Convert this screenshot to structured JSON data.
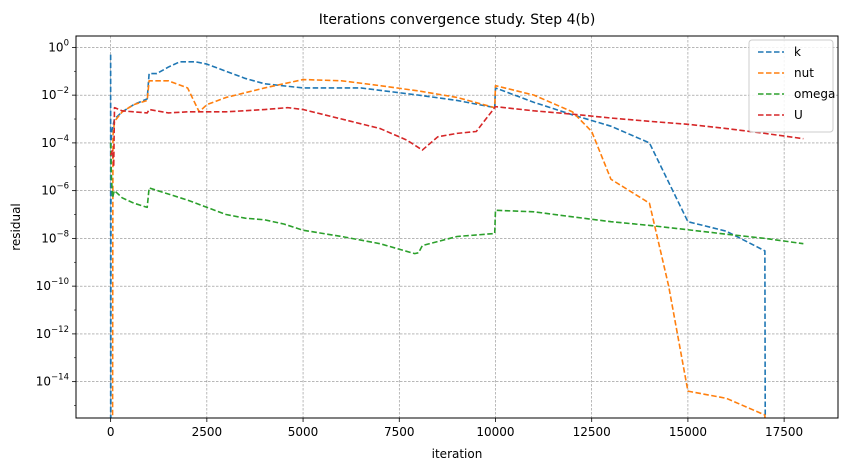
{
  "chart_data": {
    "type": "line",
    "title": "Iterations convergence study. Step 4(b)",
    "xlabel": "iteration",
    "ylabel": "residual",
    "yscale": "log",
    "xlim": [
      -900,
      18900
    ],
    "ylim": [
      3e-16,
      3
    ],
    "xticks": [
      0,
      2500,
      5000,
      7500,
      10000,
      12500,
      15000,
      17500
    ],
    "yticks": [
      {
        "base": "10",
        "exp": "0",
        "value": 1
      },
      {
        "base": "10",
        "exp": "−2",
        "value": 0.01
      },
      {
        "base": "10",
        "exp": "−4",
        "value": 0.0001
      },
      {
        "base": "10",
        "exp": "−6",
        "value": 1e-06
      },
      {
        "base": "10",
        "exp": "−8",
        "value": 1e-08
      },
      {
        "base": "10",
        "exp": "−10",
        "value": 1e-10
      },
      {
        "base": "10",
        "exp": "−12",
        "value": 1e-12
      },
      {
        "base": "10",
        "exp": "−14",
        "value": 1e-14
      }
    ],
    "grid": true,
    "legend_position": "top-right",
    "series": [
      {
        "name": "k",
        "color": "#1f77b4",
        "points": [
          [
            0,
            0.5
          ],
          [
            1,
            1e-16
          ],
          [
            5,
            1e-16
          ],
          [
            10,
            0.0001
          ],
          [
            30,
            0.0003
          ],
          [
            100,
            0.001
          ],
          [
            300,
            0.002
          ],
          [
            600,
            0.004
          ],
          [
            950,
            0.007
          ],
          [
            1000,
            0.08
          ],
          [
            1200,
            0.08
          ],
          [
            1500,
            0.15
          ],
          [
            1800,
            0.25
          ],
          [
            2200,
            0.25
          ],
          [
            2500,
            0.2
          ],
          [
            3000,
            0.1
          ],
          [
            3500,
            0.05
          ],
          [
            4000,
            0.03
          ],
          [
            5000,
            0.02
          ],
          [
            6500,
            0.02
          ],
          [
            8000,
            0.01
          ],
          [
            9000,
            0.006
          ],
          [
            9980,
            0.003
          ],
          [
            10000,
            0.02
          ],
          [
            10500,
            0.01
          ],
          [
            11000,
            0.005
          ],
          [
            12000,
            0.0015
          ],
          [
            13000,
            0.0005
          ],
          [
            14000,
            0.0001
          ],
          [
            15000,
            5e-08
          ],
          [
            16000,
            2e-08
          ],
          [
            17000,
            3e-09
          ],
          [
            17010,
            1e-16
          ]
        ]
      },
      {
        "name": "nut",
        "color": "#ff7f0e",
        "points": [
          [
            0,
            1e-16
          ],
          [
            50,
            1e-16
          ],
          [
            60,
            0.0002
          ],
          [
            100,
            0.0008
          ],
          [
            300,
            0.002
          ],
          [
            600,
            0.004
          ],
          [
            950,
            0.006
          ],
          [
            1000,
            0.04
          ],
          [
            1500,
            0.04
          ],
          [
            2000,
            0.02
          ],
          [
            2300,
            0.002
          ],
          [
            2500,
            0.004
          ],
          [
            3000,
            0.008
          ],
          [
            4000,
            0.02
          ],
          [
            5000,
            0.045
          ],
          [
            6000,
            0.04
          ],
          [
            7000,
            0.025
          ],
          [
            8000,
            0.015
          ],
          [
            9000,
            0.008
          ],
          [
            9980,
            0.003
          ],
          [
            10000,
            0.025
          ],
          [
            11000,
            0.01
          ],
          [
            12000,
            0.002
          ],
          [
            12500,
            0.0003
          ],
          [
            13000,
            3e-06
          ],
          [
            14000,
            3e-07
          ],
          [
            14500,
            1e-10
          ],
          [
            15000,
            4e-15
          ],
          [
            16000,
            2e-15
          ],
          [
            17000,
            4e-16
          ],
          [
            17010,
            1e-16
          ]
        ]
      },
      {
        "name": "omega",
        "color": "#2ca02c",
        "points": [
          [
            0,
            0.0001
          ],
          [
            20,
            4e-06
          ],
          [
            50,
            5e-07
          ],
          [
            80,
            8e-07
          ],
          [
            100,
            1e-06
          ],
          [
            300,
            5e-07
          ],
          [
            600,
            3e-07
          ],
          [
            950,
            2e-07
          ],
          [
            1000,
            1.3e-06
          ],
          [
            2000,
            4e-07
          ],
          [
            3000,
            1e-07
          ],
          [
            3500,
            7e-08
          ],
          [
            4000,
            6e-08
          ],
          [
            4500,
            4e-08
          ],
          [
            5000,
            2.2e-08
          ],
          [
            6000,
            1.2e-08
          ],
          [
            7000,
            6e-09
          ],
          [
            7900,
            2.3e-09
          ],
          [
            8000,
            2.5e-09
          ],
          [
            8100,
            5e-09
          ],
          [
            9000,
            1.2e-08
          ],
          [
            9980,
            1.6e-08
          ],
          [
            10000,
            1.5e-07
          ],
          [
            11000,
            1.3e-07
          ],
          [
            12000,
            8e-08
          ],
          [
            13000,
            5e-08
          ],
          [
            14000,
            3.5e-08
          ],
          [
            15000,
            2.3e-08
          ],
          [
            16000,
            1.5e-08
          ],
          [
            17000,
            1e-08
          ],
          [
            18000,
            6e-09
          ]
        ]
      },
      {
        "name": "U",
        "color": "#d62728",
        "points": [
          [
            0,
            3e-05
          ],
          [
            50,
            5e-05
          ],
          [
            80,
            1e-05
          ],
          [
            100,
            0.003
          ],
          [
            300,
            0.0022
          ],
          [
            600,
            0.002
          ],
          [
            950,
            0.0018
          ],
          [
            1000,
            0.0025
          ],
          [
            1500,
            0.0018
          ],
          [
            2000,
            0.002
          ],
          [
            3000,
            0.002
          ],
          [
            4000,
            0.0025
          ],
          [
            4600,
            0.003
          ],
          [
            5000,
            0.0025
          ],
          [
            6000,
            0.001
          ],
          [
            7000,
            0.0004
          ],
          [
            7700,
            0.00013
          ],
          [
            8100,
            5e-05
          ],
          [
            8500,
            0.00018
          ],
          [
            9000,
            0.00025
          ],
          [
            9500,
            0.0003
          ],
          [
            10000,
            0.0033
          ],
          [
            11000,
            0.0022
          ],
          [
            12000,
            0.0016
          ],
          [
            13000,
            0.0011
          ],
          [
            14000,
            0.0008
          ],
          [
            15000,
            0.0006
          ],
          [
            16000,
            0.0004
          ],
          [
            17000,
            0.00025
          ],
          [
            18000,
            0.00015
          ]
        ]
      }
    ]
  }
}
